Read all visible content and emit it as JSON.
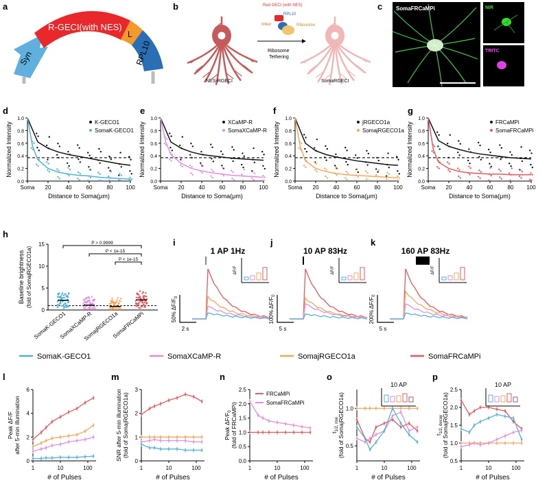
{
  "panel_letters": {
    "a": "a",
    "b": "b",
    "c": "c",
    "d": "d",
    "e": "e",
    "f": "f",
    "g": "g",
    "h": "h",
    "i": "i",
    "j": "j",
    "k": "k",
    "l": "l",
    "m": "m",
    "n": "n",
    "o": "o",
    "p": "p"
  },
  "colors": {
    "blue": "#4fb3d9",
    "pink": "#e58be0",
    "orange": "#f5a65b",
    "red": "#e8575a",
    "black": "#111111",
    "construct_red": "#e8282b",
    "construct_orange": "#f39a2b",
    "construct_blue": "#2a6fb5",
    "construct_syn": "#5fb0de",
    "neuron_red": "#c45a5a",
    "neuron_pink": "#f1b6b6"
  },
  "panel_a": {
    "syn": "Syn",
    "rgeci": "R-GECI(with NES)",
    "linker": "L",
    "rpl10": "RPL10"
  },
  "panel_b": {
    "red_geci": "Red GECI (with NES)",
    "linker": "linker",
    "rpl10": "RPL10",
    "ribosome": "Ribosome",
    "arrow_label_1": "Ribosome",
    "arrow_label_2": "Tethering",
    "left_label": "NES-RGECI",
    "right_label": "SomaRGECI"
  },
  "panel_c": {
    "title": "SomaFRCaMPi",
    "nir": "NIR",
    "tritc": "TRITC"
  },
  "distance_common": {
    "ylabel": "Normalized Intensity",
    "xlabel": "Distance to Soma(μm)",
    "xticks": [
      "Soma",
      "20",
      "40",
      "60",
      "80",
      "100"
    ],
    "yticks": [
      "0.0",
      "0.2",
      "0.4",
      "0.6",
      "0.8",
      "1.0"
    ]
  },
  "chart_data": [
    {
      "panel": "d",
      "type": "scatter",
      "legend": [
        "K-GECO1",
        "SomaK-GECO1"
      ],
      "series": [
        {
          "name": "K-GECO1",
          "color": "black",
          "x": [
            0,
            10,
            20,
            30,
            40,
            50,
            60,
            70,
            80,
            90,
            100
          ],
          "y": [
            1.0,
            0.62,
            0.52,
            0.46,
            0.42,
            0.39,
            0.36,
            0.33,
            0.3,
            0.27,
            0.25
          ]
        },
        {
          "name": "SomaK-GECO1",
          "color": "blue",
          "x": [
            0,
            5,
            10,
            20,
            30,
            40,
            50,
            60,
            70,
            80,
            90,
            100
          ],
          "y": [
            1.0,
            0.55,
            0.34,
            0.2,
            0.14,
            0.11,
            0.09,
            0.08,
            0.06,
            0.05,
            0.04,
            0.03
          ]
        }
      ],
      "threshold": 0.37,
      "xlim": [
        0,
        100
      ],
      "ylim": [
        0,
        1.0
      ]
    },
    {
      "panel": "e",
      "type": "scatter",
      "legend": [
        "XCaMP-R",
        "SomaXCaMP-R"
      ],
      "series": [
        {
          "name": "XCaMP-R",
          "color": "black",
          "x": [
            0,
            10,
            20,
            30,
            40,
            50,
            60,
            70,
            80,
            90,
            100
          ],
          "y": [
            1.0,
            0.62,
            0.52,
            0.46,
            0.42,
            0.4,
            0.38,
            0.36,
            0.35,
            0.34,
            0.33
          ]
        },
        {
          "name": "SomaXCaMP-R",
          "color": "pink",
          "x": [
            0,
            5,
            10,
            20,
            30,
            40,
            50,
            60,
            70,
            80,
            90,
            100
          ],
          "y": [
            1.0,
            0.62,
            0.42,
            0.28,
            0.2,
            0.16,
            0.13,
            0.11,
            0.09,
            0.08,
            0.07,
            0.06
          ]
        }
      ],
      "threshold": 0.37,
      "xlim": [
        0,
        100
      ],
      "ylim": [
        0,
        1.0
      ]
    },
    {
      "panel": "f",
      "type": "scatter",
      "legend": [
        "jRGECO1a",
        "SomajRGECO1a"
      ],
      "series": [
        {
          "name": "jRGECO1a",
          "color": "black",
          "x": [
            0,
            10,
            20,
            30,
            40,
            50,
            60,
            70,
            80,
            90,
            100
          ],
          "y": [
            1.0,
            0.6,
            0.48,
            0.42,
            0.38,
            0.35,
            0.32,
            0.3,
            0.28,
            0.26,
            0.25
          ]
        },
        {
          "name": "SomajRGECO1a",
          "color": "orange",
          "x": [
            0,
            5,
            10,
            20,
            30,
            40,
            50,
            60,
            70,
            80,
            90,
            100
          ],
          "y": [
            1.0,
            0.55,
            0.32,
            0.2,
            0.15,
            0.12,
            0.1,
            0.09,
            0.08,
            0.07,
            0.06,
            0.05
          ]
        }
      ],
      "threshold": 0.37,
      "xlim": [
        0,
        100
      ],
      "ylim": [
        0,
        1.0
      ]
    },
    {
      "panel": "g",
      "type": "scatter",
      "legend": [
        "FRCaMPi",
        "SomaFRCaMPi"
      ],
      "series": [
        {
          "name": "FRCaMPi",
          "color": "black",
          "x": [
            0,
            10,
            20,
            30,
            40,
            50,
            60,
            70,
            80,
            90,
            100
          ],
          "y": [
            1.0,
            0.64,
            0.55,
            0.5,
            0.46,
            0.43,
            0.41,
            0.39,
            0.37,
            0.36,
            0.35
          ]
        },
        {
          "name": "SomaFRCaMPi",
          "color": "red",
          "x": [
            0,
            5,
            10,
            20,
            30,
            40,
            50,
            60,
            70,
            80,
            90,
            100
          ],
          "y": [
            1.0,
            0.5,
            0.3,
            0.2,
            0.15,
            0.13,
            0.12,
            0.11,
            0.11,
            0.1,
            0.1,
            0.1
          ]
        }
      ],
      "threshold": 0.37,
      "xlim": [
        0,
        100
      ],
      "ylim": [
        0,
        1.0
      ]
    },
    {
      "panel": "h",
      "type": "scatter",
      "ylabel": "Baseline brightness",
      "ylabel2": "(fold of SomajRGECO1a)",
      "yticks": [
        "0",
        "5",
        "10",
        "15"
      ],
      "categories": [
        "SomaK-GECO1",
        "SomaXCaMP-R",
        "SomajRGECO1a",
        "SomaFRCaMPi"
      ],
      "medians": [
        2.2,
        1.1,
        0.8,
        2.3
      ],
      "ylim": [
        0,
        15
      ],
      "stats": [
        "P > 0.9999",
        "P < 1e-15",
        "P < 1e-15"
      ]
    },
    {
      "panel": "i",
      "type": "line",
      "title": "1 AP 1Hz",
      "scalebar_y": "50% ΔF/F",
      "scalebar_y_sub": "0",
      "scalebar_x": "2 s",
      "inset_ylabel": "ΔF/F",
      "series": [
        {
          "name": "SomaFRCaMPi",
          "peak": 1.0
        },
        {
          "name": "SomajRGECO1a",
          "peak": 0.45
        },
        {
          "name": "SomaXCaMP-R",
          "peak": 0.25
        },
        {
          "name": "SomaK-GECO1",
          "peak": 0.12
        }
      ]
    },
    {
      "panel": "j",
      "type": "line",
      "title": "10 AP 83Hz",
      "scalebar_y": "100% ΔF/F",
      "scalebar_y_sub": "0",
      "scalebar_x": "5 s",
      "inset_ylabel": "ΔF/F",
      "series": [
        {
          "name": "SomaFRCaMPi",
          "peak": 1.0
        },
        {
          "name": "SomajRGECO1a",
          "peak": 0.42
        },
        {
          "name": "SomaXCaMP-R",
          "peak": 0.3
        },
        {
          "name": "SomaK-GECO1",
          "peak": 0.1
        }
      ]
    },
    {
      "panel": "k",
      "type": "line",
      "title": "160 AP 83Hz",
      "scalebar_y": "200% ΔF/F",
      "scalebar_y_sub": "0",
      "scalebar_x": "5 s",
      "inset_ylabel": "ΔF/F",
      "series": [
        {
          "name": "SomaFRCaMPi",
          "peak": 1.0
        },
        {
          "name": "SomajRGECO1a",
          "peak": 0.55
        },
        {
          "name": "SomaXCaMP-R",
          "peak": 0.3
        },
        {
          "name": "SomaK-GECO1",
          "peak": 0.12
        }
      ]
    },
    {
      "panel": "l",
      "type": "line",
      "ylabel": "Peak ΔF/F",
      "ylabel2": "after 5-min illumination",
      "xlabel": "# of Pulses",
      "xticks": [
        "1",
        "10",
        "100"
      ],
      "yticks": [
        "0",
        "2",
        "4",
        "6"
      ],
      "ylim": [
        0,
        6
      ],
      "x": [
        1,
        2,
        3,
        5,
        10,
        20,
        40,
        80,
        160
      ],
      "series": [
        {
          "name": "SomaFRCaMPi",
          "color": "red",
          "values": [
            1.8,
            2.4,
            2.8,
            3.3,
            3.7,
            4.1,
            4.4,
            4.9,
            5.3
          ]
        },
        {
          "name": "SomajRGECO1a",
          "color": "orange",
          "values": [
            1.2,
            1.5,
            1.7,
            1.9,
            2.0,
            2.1,
            2.2,
            2.5,
            3.0
          ]
        },
        {
          "name": "SomaXCaMP-R",
          "color": "pink",
          "values": [
            0.8,
            1.0,
            1.1,
            1.3,
            1.4,
            1.6,
            1.7,
            1.8,
            2.0
          ]
        },
        {
          "name": "SomaK-GECO1",
          "color": "blue",
          "values": [
            0.2,
            0.2,
            0.25,
            0.25,
            0.3,
            0.3,
            0.3,
            0.35,
            0.4
          ]
        }
      ]
    },
    {
      "panel": "m",
      "type": "line",
      "ylabel": "SNR after 5-min illumination",
      "ylabel2": "(fold of SomajRGECO1a)",
      "xlabel": "# of Pulses",
      "xticks": [
        "1",
        "10",
        "100"
      ],
      "yticks": [
        "0",
        "1",
        "2",
        "3"
      ],
      "ylim": [
        0,
        3
      ],
      "x": [
        1,
        2,
        3,
        5,
        10,
        20,
        40,
        80,
        160
      ],
      "series": [
        {
          "name": "SomaFRCaMPi",
          "color": "red",
          "values": [
            1.95,
            2.2,
            2.3,
            2.4,
            2.55,
            2.65,
            2.8,
            2.7,
            2.5
          ]
        },
        {
          "name": "SomajRGECO1a",
          "color": "orange",
          "values": [
            1.0,
            1.0,
            1.0,
            1.0,
            1.0,
            1.0,
            1.0,
            1.0,
            1.0
          ]
        },
        {
          "name": "SomaXCaMP-R",
          "color": "pink",
          "values": [
            0.8,
            0.85,
            0.9,
            0.85,
            0.85,
            0.85,
            0.85,
            0.8,
            0.8
          ]
        },
        {
          "name": "SomaK-GECO1",
          "color": "blue",
          "values": [
            0.7,
            0.55,
            0.55,
            0.5,
            0.5,
            0.5,
            0.45,
            0.45,
            0.45
          ]
        }
      ]
    },
    {
      "panel": "n",
      "type": "line",
      "ylabel": "Peak ΔF/F",
      "ylabel_sub": "0",
      "ylabel2": "(fold of FRCaMPi)",
      "xlabel": "# of Pulses",
      "xticks": [
        "1",
        "10",
        "100"
      ],
      "yticks": [
        "0.0",
        "0.5",
        "1.0",
        "1.5",
        "2.0",
        "2.5"
      ],
      "ylim": [
        0,
        2.5
      ],
      "legend": [
        "FRCaMPi",
        "SomaFRCaMPi"
      ],
      "x": [
        1,
        2,
        3,
        5,
        10,
        20,
        40,
        80,
        160
      ],
      "series": [
        {
          "name": "FRCaMPi",
          "color": "red",
          "values": [
            1.0,
            1.0,
            1.0,
            1.0,
            1.0,
            1.0,
            1.0,
            1.0,
            1.0
          ]
        },
        {
          "name": "SomaFRCaMPi",
          "color": "pink",
          "values": [
            2.1,
            1.6,
            1.5,
            1.4,
            1.35,
            1.3,
            1.25,
            1.2,
            1.15
          ]
        }
      ]
    },
    {
      "panel": "o",
      "type": "line",
      "ylabel": "t",
      "ylabel_sub": "1/2, rise",
      "ylabel2": "(fold of SomajRGECO1a)",
      "xlabel": "# of Pulses",
      "xticks": [
        "1",
        "10",
        "100"
      ],
      "yticks": [
        "0.5",
        "1.0"
      ],
      "ylim": [
        0.3,
        1.25
      ],
      "inset_title": "10 AP",
      "x": [
        1,
        2,
        3,
        5,
        10,
        20,
        40,
        80,
        160
      ],
      "series": [
        {
          "name": "SomajRGECO1a",
          "color": "orange",
          "values": [
            1.0,
            1.0,
            1.0,
            1.0,
            1.0,
            1.0,
            1.0,
            1.0,
            1.0
          ]
        },
        {
          "name": "SomaFRCaMPi",
          "color": "red",
          "values": [
            0.85,
            0.6,
            0.55,
            0.75,
            0.8,
            0.85,
            0.75,
            0.8,
            0.7
          ]
        },
        {
          "name": "SomaXCaMP-R",
          "color": "pink",
          "values": [
            0.6,
            0.55,
            0.6,
            0.65,
            0.7,
            0.9,
            0.95,
            0.7,
            0.75
          ]
        },
        {
          "name": "SomaK-GECO1",
          "color": "blue",
          "values": [
            0.75,
            0.6,
            0.45,
            0.55,
            0.7,
            1.0,
            0.8,
            0.65,
            0.55
          ]
        }
      ]
    },
    {
      "panel": "p",
      "type": "line",
      "ylabel": "t",
      "ylabel_sub": "1/2, decay",
      "ylabel2": "(fold of SomajRGECO1a)",
      "xlabel": "# of Pulses",
      "xticks": [
        "1",
        "10",
        "100"
      ],
      "yticks": [
        "0.5",
        "1.0",
        "1.5",
        "2.0",
        "2.5"
      ],
      "ylim": [
        0.5,
        2.5
      ],
      "inset_title": "10 AP",
      "x": [
        1,
        2,
        3,
        5,
        10,
        20,
        40,
        80,
        160
      ],
      "series": [
        {
          "name": "SomajRGECO1a",
          "color": "orange",
          "values": [
            1.0,
            1.0,
            1.0,
            1.0,
            1.0,
            1.0,
            1.0,
            1.0,
            1.0
          ]
        },
        {
          "name": "SomaFRCaMPi",
          "color": "red",
          "values": [
            2.2,
            1.8,
            1.9,
            2.0,
            2.0,
            1.95,
            1.9,
            1.6,
            1.4
          ]
        },
        {
          "name": "SomaXCaMP-R",
          "color": "pink",
          "values": [
            0.9,
            0.95,
            1.0,
            0.95,
            1.0,
            1.1,
            1.2,
            1.3,
            1.35
          ]
        },
        {
          "name": "SomaK-GECO1",
          "color": "blue",
          "values": [
            1.4,
            1.3,
            1.5,
            1.6,
            1.7,
            1.8,
            1.75,
            1.7,
            1.1
          ]
        }
      ]
    }
  ],
  "legend_row": [
    "SomaK-GECO1",
    "SomaXCaMP-R",
    "SomajRGECO1a",
    "SomaFRCaMPi"
  ]
}
